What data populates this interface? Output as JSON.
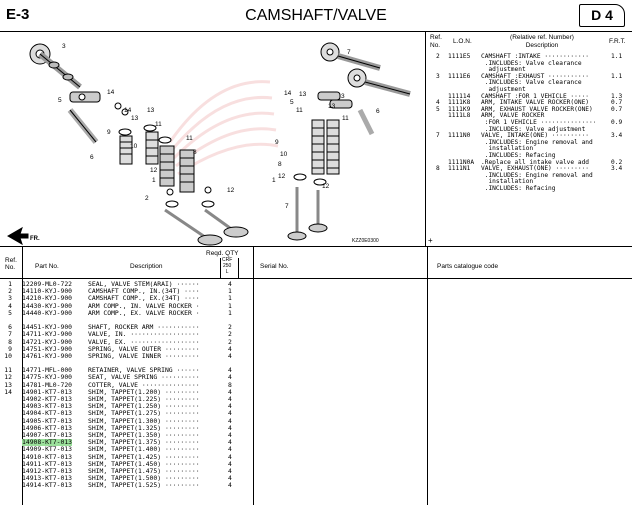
{
  "header": {
    "section": "E-3",
    "title": "CAMSHAFT/VALVE",
    "group": "D 4"
  },
  "diagram": {
    "code": "KZZ0E0300",
    "front_label": "FR.",
    "callouts": [
      "3",
      "14",
      "5",
      "13",
      "14",
      "13",
      "11",
      "9",
      "10",
      "11",
      "8",
      "12",
      "1",
      "12",
      "2",
      "6",
      "7",
      "3",
      "14",
      "13",
      "5",
      "13",
      "11",
      "11",
      "9",
      "10",
      "8",
      "12",
      "1",
      "12",
      "6",
      "7"
    ]
  },
  "ref_panel": {
    "col_ref": "Ref.\nNo.",
    "col_lon": "L.O.N.",
    "col_desc": "(Relative ref. Number)\nDescription",
    "col_frt": "F.R.T.",
    "rows": [
      {
        "ref": "2",
        "lon": "1111E5",
        "desc": "CAMSHAFT :INTAKE ············",
        "frt": "1.1"
      },
      {
        "ref": "",
        "lon": "",
        "desc": " .INCLUDES: Valve clearance",
        "frt": ""
      },
      {
        "ref": "",
        "lon": "",
        "desc": "  adjustment",
        "frt": ""
      },
      {
        "ref": "3",
        "lon": "1111E6",
        "desc": "CAMSHAFT :EXHAUST ···········",
        "frt": "1.1"
      },
      {
        "ref": "",
        "lon": "",
        "desc": " .INCLUDES: Valve clearance",
        "frt": ""
      },
      {
        "ref": "",
        "lon": "",
        "desc": "  adjustment",
        "frt": ""
      },
      {
        "ref": "",
        "lon": "111114",
        "desc": "CAMSHAFT :FOR 1 VEHICLE ·····",
        "frt": "1.3"
      },
      {
        "ref": "4",
        "lon": "1111K8",
        "desc": "ARM, INTAKE VALVE ROCKER(ONE)",
        "frt": "0.7"
      },
      {
        "ref": "5",
        "lon": "1111K9",
        "desc": "ARM, EXHAUST VALVE ROCKER(ONE)",
        "frt": "0.7"
      },
      {
        "ref": "",
        "lon": "1111L8",
        "desc": "ARM, VALVE ROCKER",
        "frt": ""
      },
      {
        "ref": "",
        "lon": "",
        "desc": " :FOR 1 VEHICLE ···············",
        "frt": "0.9"
      },
      {
        "ref": "",
        "lon": "",
        "desc": " .INCLUDES: Valve adjustment",
        "frt": ""
      },
      {
        "ref": "7",
        "lon": "1111N0",
        "desc": "VALVE, INTAKE(ONE) ··········",
        "frt": "3.4"
      },
      {
        "ref": "",
        "lon": "",
        "desc": " .INCLUDES: Engine removal and",
        "frt": ""
      },
      {
        "ref": "",
        "lon": "",
        "desc": "  installation",
        "frt": ""
      },
      {
        "ref": "",
        "lon": "",
        "desc": " .INCLUDES: Refacing",
        "frt": ""
      },
      {
        "ref": "",
        "lon": "1111N0A",
        "desc": ".Replace all intake valve add",
        "frt": "0.2"
      },
      {
        "ref": "8",
        "lon": "1111N1",
        "desc": "VALVE, EXHAUST(ONE) ·········",
        "frt": "3.4"
      },
      {
        "ref": "",
        "lon": "",
        "desc": " .INCLUDES: Engine removal and",
        "frt": ""
      },
      {
        "ref": "",
        "lon": "",
        "desc": "  installation",
        "frt": ""
      },
      {
        "ref": "",
        "lon": "",
        "desc": " .INCLUDES: Refacing",
        "frt": ""
      }
    ],
    "plus": "+"
  },
  "parts_header": {
    "ref": "Ref.\nNo.",
    "part_no": "Part No.",
    "description": "Description",
    "reqd_qty": "Reqd. QTY",
    "qty_sub": "CRF\n250\nL",
    "serial_no": "Serial No.",
    "catalogue": "Parts catalogue code"
  },
  "parts": [
    {
      "ref": "1",
      "part": "12209-ML0-722",
      "desc": "SEAL, VALVE STEM(ARAI) ······",
      "qty": "4"
    },
    {
      "ref": "2",
      "part": "14110-KYJ-900",
      "desc": "CAMSHAFT COMP., IN.(34T) ····",
      "qty": "1"
    },
    {
      "ref": "3",
      "part": "14210-KYJ-900",
      "desc": "CAMSHAFT COMP., EX.(34T) ····",
      "qty": "1"
    },
    {
      "ref": "4",
      "part": "14430-KYJ-900",
      "desc": "ARM COMP., IN. VALVE ROCKER ·",
      "qty": "1"
    },
    {
      "ref": "5",
      "part": "14440-KYJ-900",
      "desc": "ARM COMP., EX. VALVE ROCKER ·",
      "qty": "1"
    },
    {
      "gap": true
    },
    {
      "ref": "6",
      "part": "14451-KYJ-900",
      "desc": "SHAFT, ROCKER ARM ···········",
      "qty": "2"
    },
    {
      "ref": "7",
      "part": "14711-KYJ-900",
      "desc": "VALVE, IN. ··················",
      "qty": "2"
    },
    {
      "ref": "8",
      "part": "14721-KYJ-900",
      "desc": "VALVE, EX. ··················",
      "qty": "2"
    },
    {
      "ref": "9",
      "part": "14751-KYJ-900",
      "desc": "SPRING, VALVE OUTER ·········",
      "qty": "4"
    },
    {
      "ref": "10",
      "part": "14761-KYJ-900",
      "desc": "SPRING, VALVE INNER ·········",
      "qty": "4"
    },
    {
      "gap": true
    },
    {
      "ref": "11",
      "part": "14771-MFL-000",
      "desc": "RETAINER, VALVE SPRING ······",
      "qty": "4"
    },
    {
      "ref": "12",
      "part": "14775-KYJ-900",
      "desc": "SEAT, VALVE SPRING ··········",
      "qty": "4"
    },
    {
      "ref": "13",
      "part": "14781-ML0-720",
      "desc": "COTTER, VALVE ···············",
      "qty": "8"
    },
    {
      "ref": "14",
      "part": "14901-KT7-013",
      "desc": "SHIM, TAPPET(1.200) ·········",
      "qty": "4"
    },
    {
      "ref": "",
      "part": "14902-KT7-013",
      "desc": "SHIM, TAPPET(1.225) ·········",
      "qty": "4"
    },
    {
      "ref": "",
      "part": "14903-KT7-013",
      "desc": "SHIM, TAPPET(1.250) ·········",
      "qty": "4"
    },
    {
      "ref": "",
      "part": "14904-KT7-013",
      "desc": "SHIM, TAPPET(1.275) ·········",
      "qty": "4"
    },
    {
      "ref": "",
      "part": "14905-KT7-013",
      "desc": "SHIM, TAPPET(1.300) ·········",
      "qty": "4"
    },
    {
      "ref": "",
      "part": "14906-KT7-013",
      "desc": "SHIM, TAPPET(1.325) ·········",
      "qty": "4"
    },
    {
      "ref": "",
      "part": "14907-KT7-013",
      "desc": "SHIM, TAPPET(1.350) ·········",
      "qty": "4"
    },
    {
      "ref": "",
      "part": "14908-KT7-013",
      "desc": "SHIM, TAPPET(1.375) ·········",
      "qty": "4",
      "highlight": true
    },
    {
      "ref": "",
      "part": "14909-KT7-013",
      "desc": "SHIM, TAPPET(1.400) ·········",
      "qty": "4"
    },
    {
      "ref": "",
      "part": "14910-KT7-013",
      "desc": "SHIM, TAPPET(1.425) ·········",
      "qty": "4"
    },
    {
      "ref": "",
      "part": "14911-KT7-013",
      "desc": "SHIM, TAPPET(1.450) ·········",
      "qty": "4"
    },
    {
      "ref": "",
      "part": "14912-KT7-013",
      "desc": "SHIM, TAPPET(1.475) ·········",
      "qty": "4"
    },
    {
      "ref": "",
      "part": "14913-KT7-013",
      "desc": "SHIM, TAPPET(1.500) ·········",
      "qty": "4"
    },
    {
      "ref": "",
      "part": "14914-KT7-013",
      "desc": "SHIM, TAPPET(1.525) ·········",
      "qty": "4"
    }
  ]
}
